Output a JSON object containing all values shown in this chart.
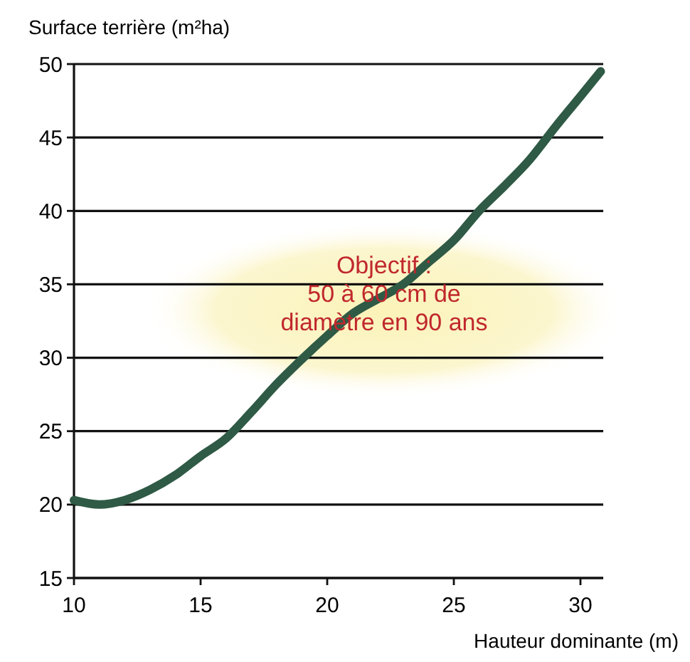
{
  "chart_data": {
    "type": "line",
    "ylabel": "Surface terrière (m²ha)",
    "xlabel": "Hauteur dominante (m)",
    "x": [
      10,
      11,
      12,
      13,
      14,
      15,
      16,
      17,
      18,
      19,
      20,
      21,
      22,
      23,
      24,
      25,
      26,
      27,
      28,
      29,
      30,
      30.8
    ],
    "series": [
      {
        "color": "#2f5a45",
        "values": [
          20.3,
          20,
          20.3,
          21,
          22,
          23.3,
          24.5,
          26.3,
          28.2,
          29.9,
          31.5,
          33,
          34,
          35,
          36.5,
          38,
          40,
          41.7,
          43.5,
          45.7,
          47.8,
          49.5
        ]
      }
    ],
    "xlim": [
      10,
      30.9
    ],
    "ylim": [
      15,
      50
    ],
    "xticks": [
      10,
      15,
      20,
      25,
      30
    ],
    "yticks": [
      15,
      20,
      25,
      30,
      35,
      40,
      45,
      50
    ],
    "grid": "y",
    "line_style": "solid",
    "marker": "none",
    "annotations": [
      "Objectif :\n50 à 60 cm de\ndiamètre en 90 ans"
    ]
  }
}
